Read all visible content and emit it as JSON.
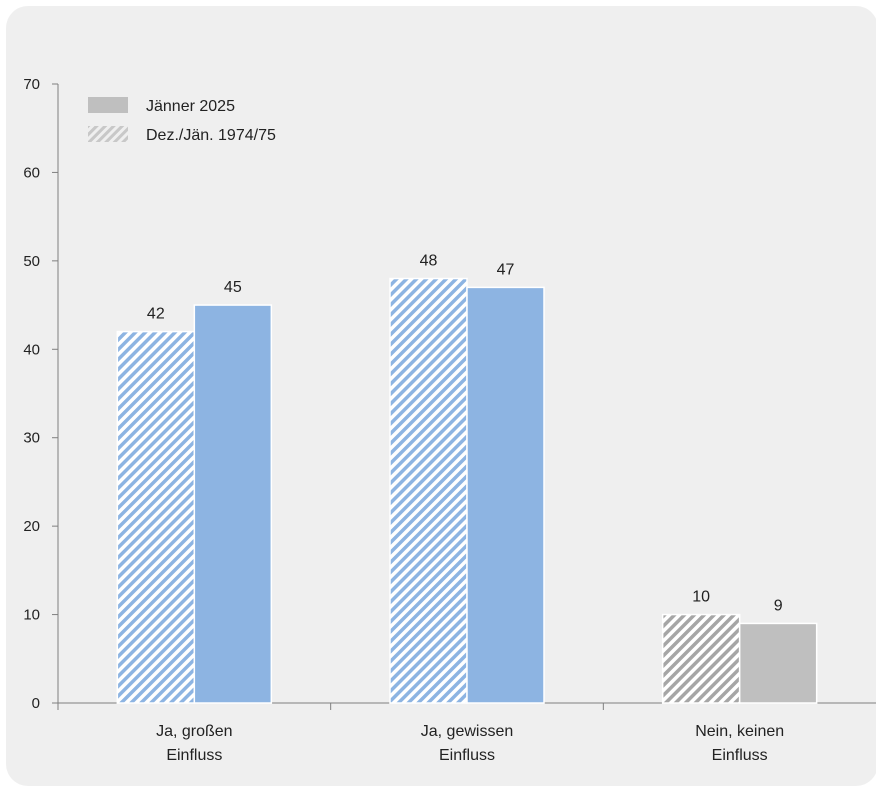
{
  "chart_data": {
    "type": "bar",
    "categories": [
      [
        "Ja, großen",
        "Einfluss"
      ],
      [
        "Ja, gewissen",
        "Einfluss"
      ],
      [
        "Nein, keinen",
        "Einfluss"
      ]
    ],
    "series": [
      {
        "name": "Dez./Jän. 1974/75",
        "pattern": "hatched",
        "values": [
          42,
          48,
          10
        ]
      },
      {
        "name": "Jänner 2025",
        "pattern": "solid",
        "values": [
          45,
          47,
          9
        ]
      }
    ],
    "category_colors": [
      "#8db4e2",
      "#8db4e2",
      "#bfbfbf"
    ],
    "legend_order": [
      "Jänner 2025",
      "Dez./Jän. 1974/75"
    ],
    "legend_color": "#bfbfbf",
    "ylim": [
      0,
      70
    ],
    "yticks": [
      0,
      10,
      20,
      30,
      40,
      50,
      60,
      70
    ],
    "grid": false,
    "legend_position": "top-left",
    "title": "",
    "xlabel": "",
    "ylabel": ""
  }
}
